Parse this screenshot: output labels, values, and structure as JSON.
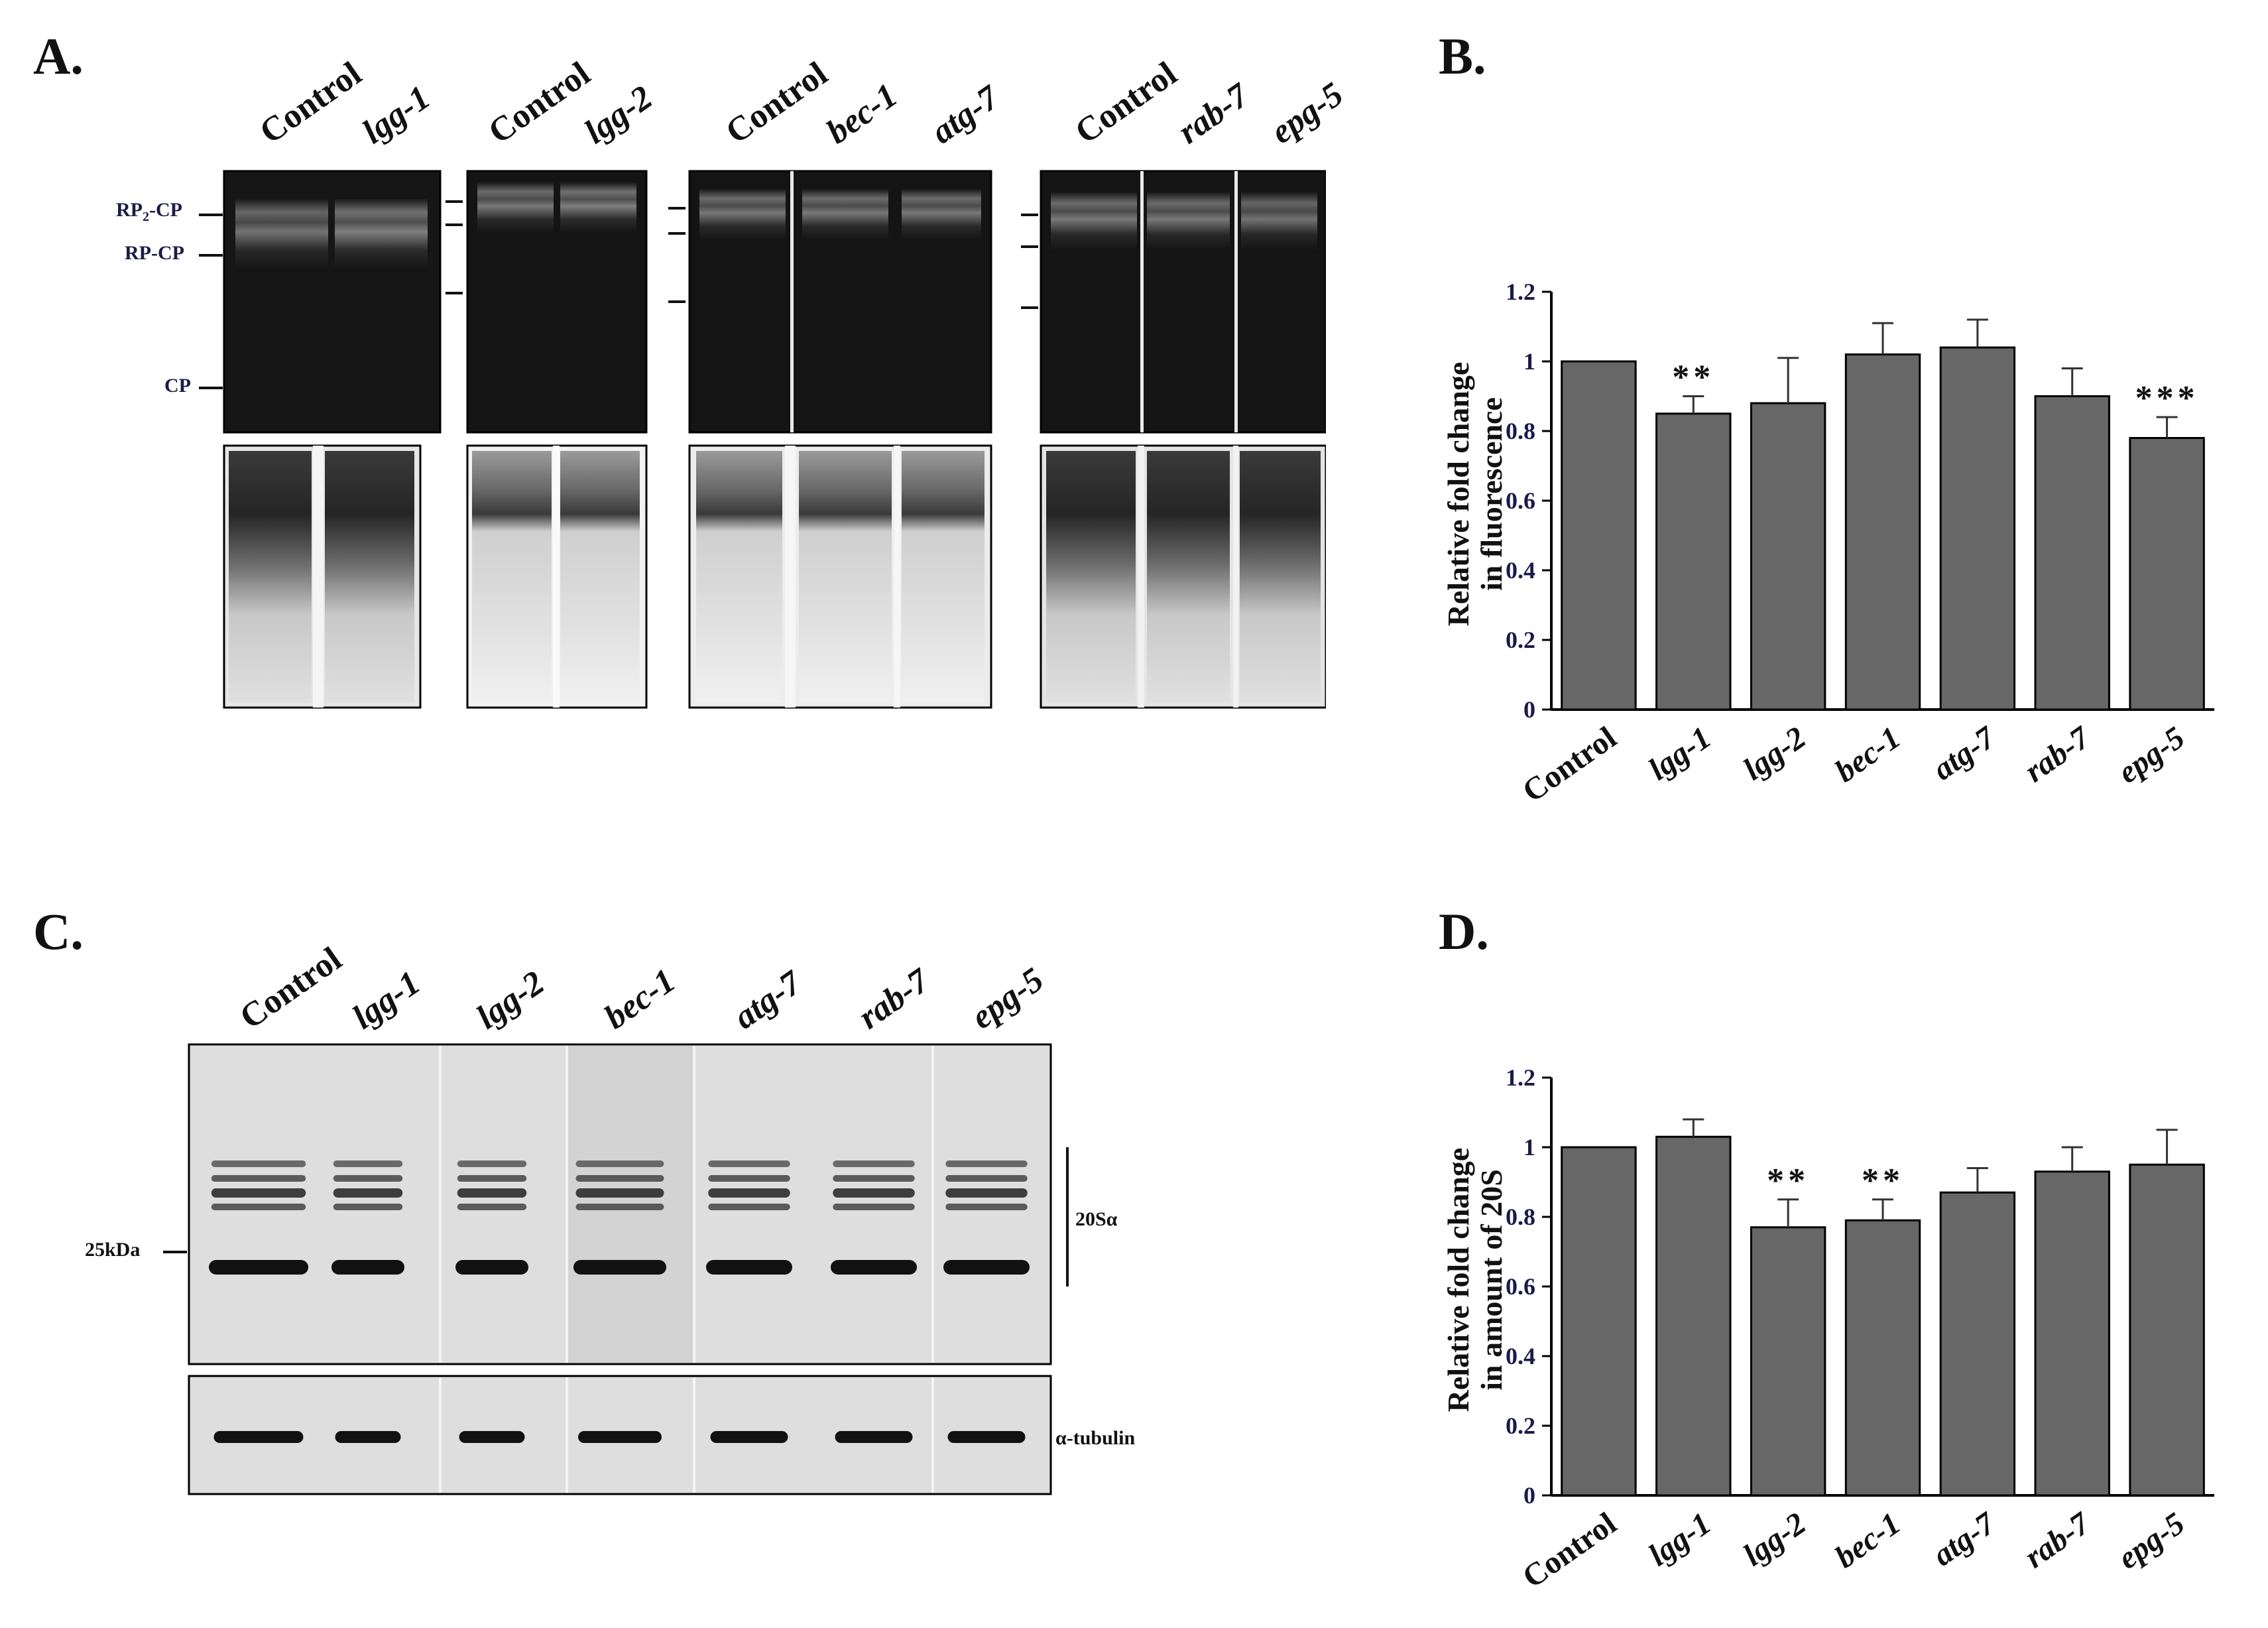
{
  "panels": {
    "A": {
      "letter": "A.",
      "gel1": {
        "lanes": [
          "Control",
          "lgg-1"
        ]
      },
      "gel2": {
        "lanes": [
          "Control",
          "lgg-2"
        ]
      },
      "gel3": {
        "lanes": [
          "Control",
          "bec-1",
          "atg-7"
        ]
      },
      "gel4": {
        "lanes": [
          "Control",
          "rab-7",
          "epg-5"
        ]
      },
      "band_labels": {
        "rp2cp": "RP",
        "rp2cp_sub": "2",
        "rp2cp_tail": "-CP",
        "rpcp": "RP-CP",
        "cp": "CP"
      }
    },
    "B": {
      "letter": "B."
    },
    "C": {
      "letter": "C.",
      "lanes": [
        "Control",
        "lgg-1",
        "lgg-2",
        "bec-1",
        "atg-7",
        "rab-7",
        "epg-5"
      ],
      "marker": "25kDa",
      "label_20s": "20Sα",
      "label_tubulin": "α-tubulin"
    },
    "D": {
      "letter": "D."
    }
  },
  "chart_data": [
    {
      "type": "bar",
      "panel": "B",
      "categories": [
        "Control",
        "lgg-1",
        "lgg-2",
        "bec-1",
        "atg-7",
        "rab-7",
        "epg-5"
      ],
      "italic_categories": [
        false,
        true,
        true,
        true,
        true,
        true,
        true
      ],
      "values": [
        1.0,
        0.85,
        0.88,
        1.02,
        1.04,
        0.9,
        0.78
      ],
      "errors": [
        0.0,
        0.05,
        0.13,
        0.09,
        0.08,
        0.08,
        0.06
      ],
      "significance": [
        "",
        "**",
        "",
        "",
        "",
        "",
        "***"
      ],
      "ylabel_line1": "Relative fold change",
      "ylabel_line2": "in fluorescence",
      "ylim": [
        0,
        1.2
      ],
      "yticks": [
        "0",
        "0.2",
        "0.4",
        "0.6",
        "0.8",
        "1",
        "1.2"
      ],
      "bar_color": "#676767"
    },
    {
      "type": "bar",
      "panel": "D",
      "categories": [
        "Control",
        "lgg-1",
        "lgg-2",
        "bec-1",
        "atg-7",
        "rab-7",
        "epg-5"
      ],
      "italic_categories": [
        false,
        true,
        true,
        true,
        true,
        true,
        true
      ],
      "values": [
        1.0,
        1.03,
        0.77,
        0.79,
        0.87,
        0.93,
        0.95
      ],
      "errors": [
        0.0,
        0.05,
        0.08,
        0.06,
        0.07,
        0.07,
        0.1
      ],
      "significance": [
        "",
        "",
        "**",
        "**",
        "",
        "",
        ""
      ],
      "ylabel_line1": "Relative fold change",
      "ylabel_line2": "in amount of 20S",
      "ylim": [
        0,
        1.2
      ],
      "yticks": [
        "0",
        "0.2",
        "0.4",
        "0.6",
        "0.8",
        "1",
        "1.2"
      ],
      "bar_color": "#676767"
    }
  ]
}
